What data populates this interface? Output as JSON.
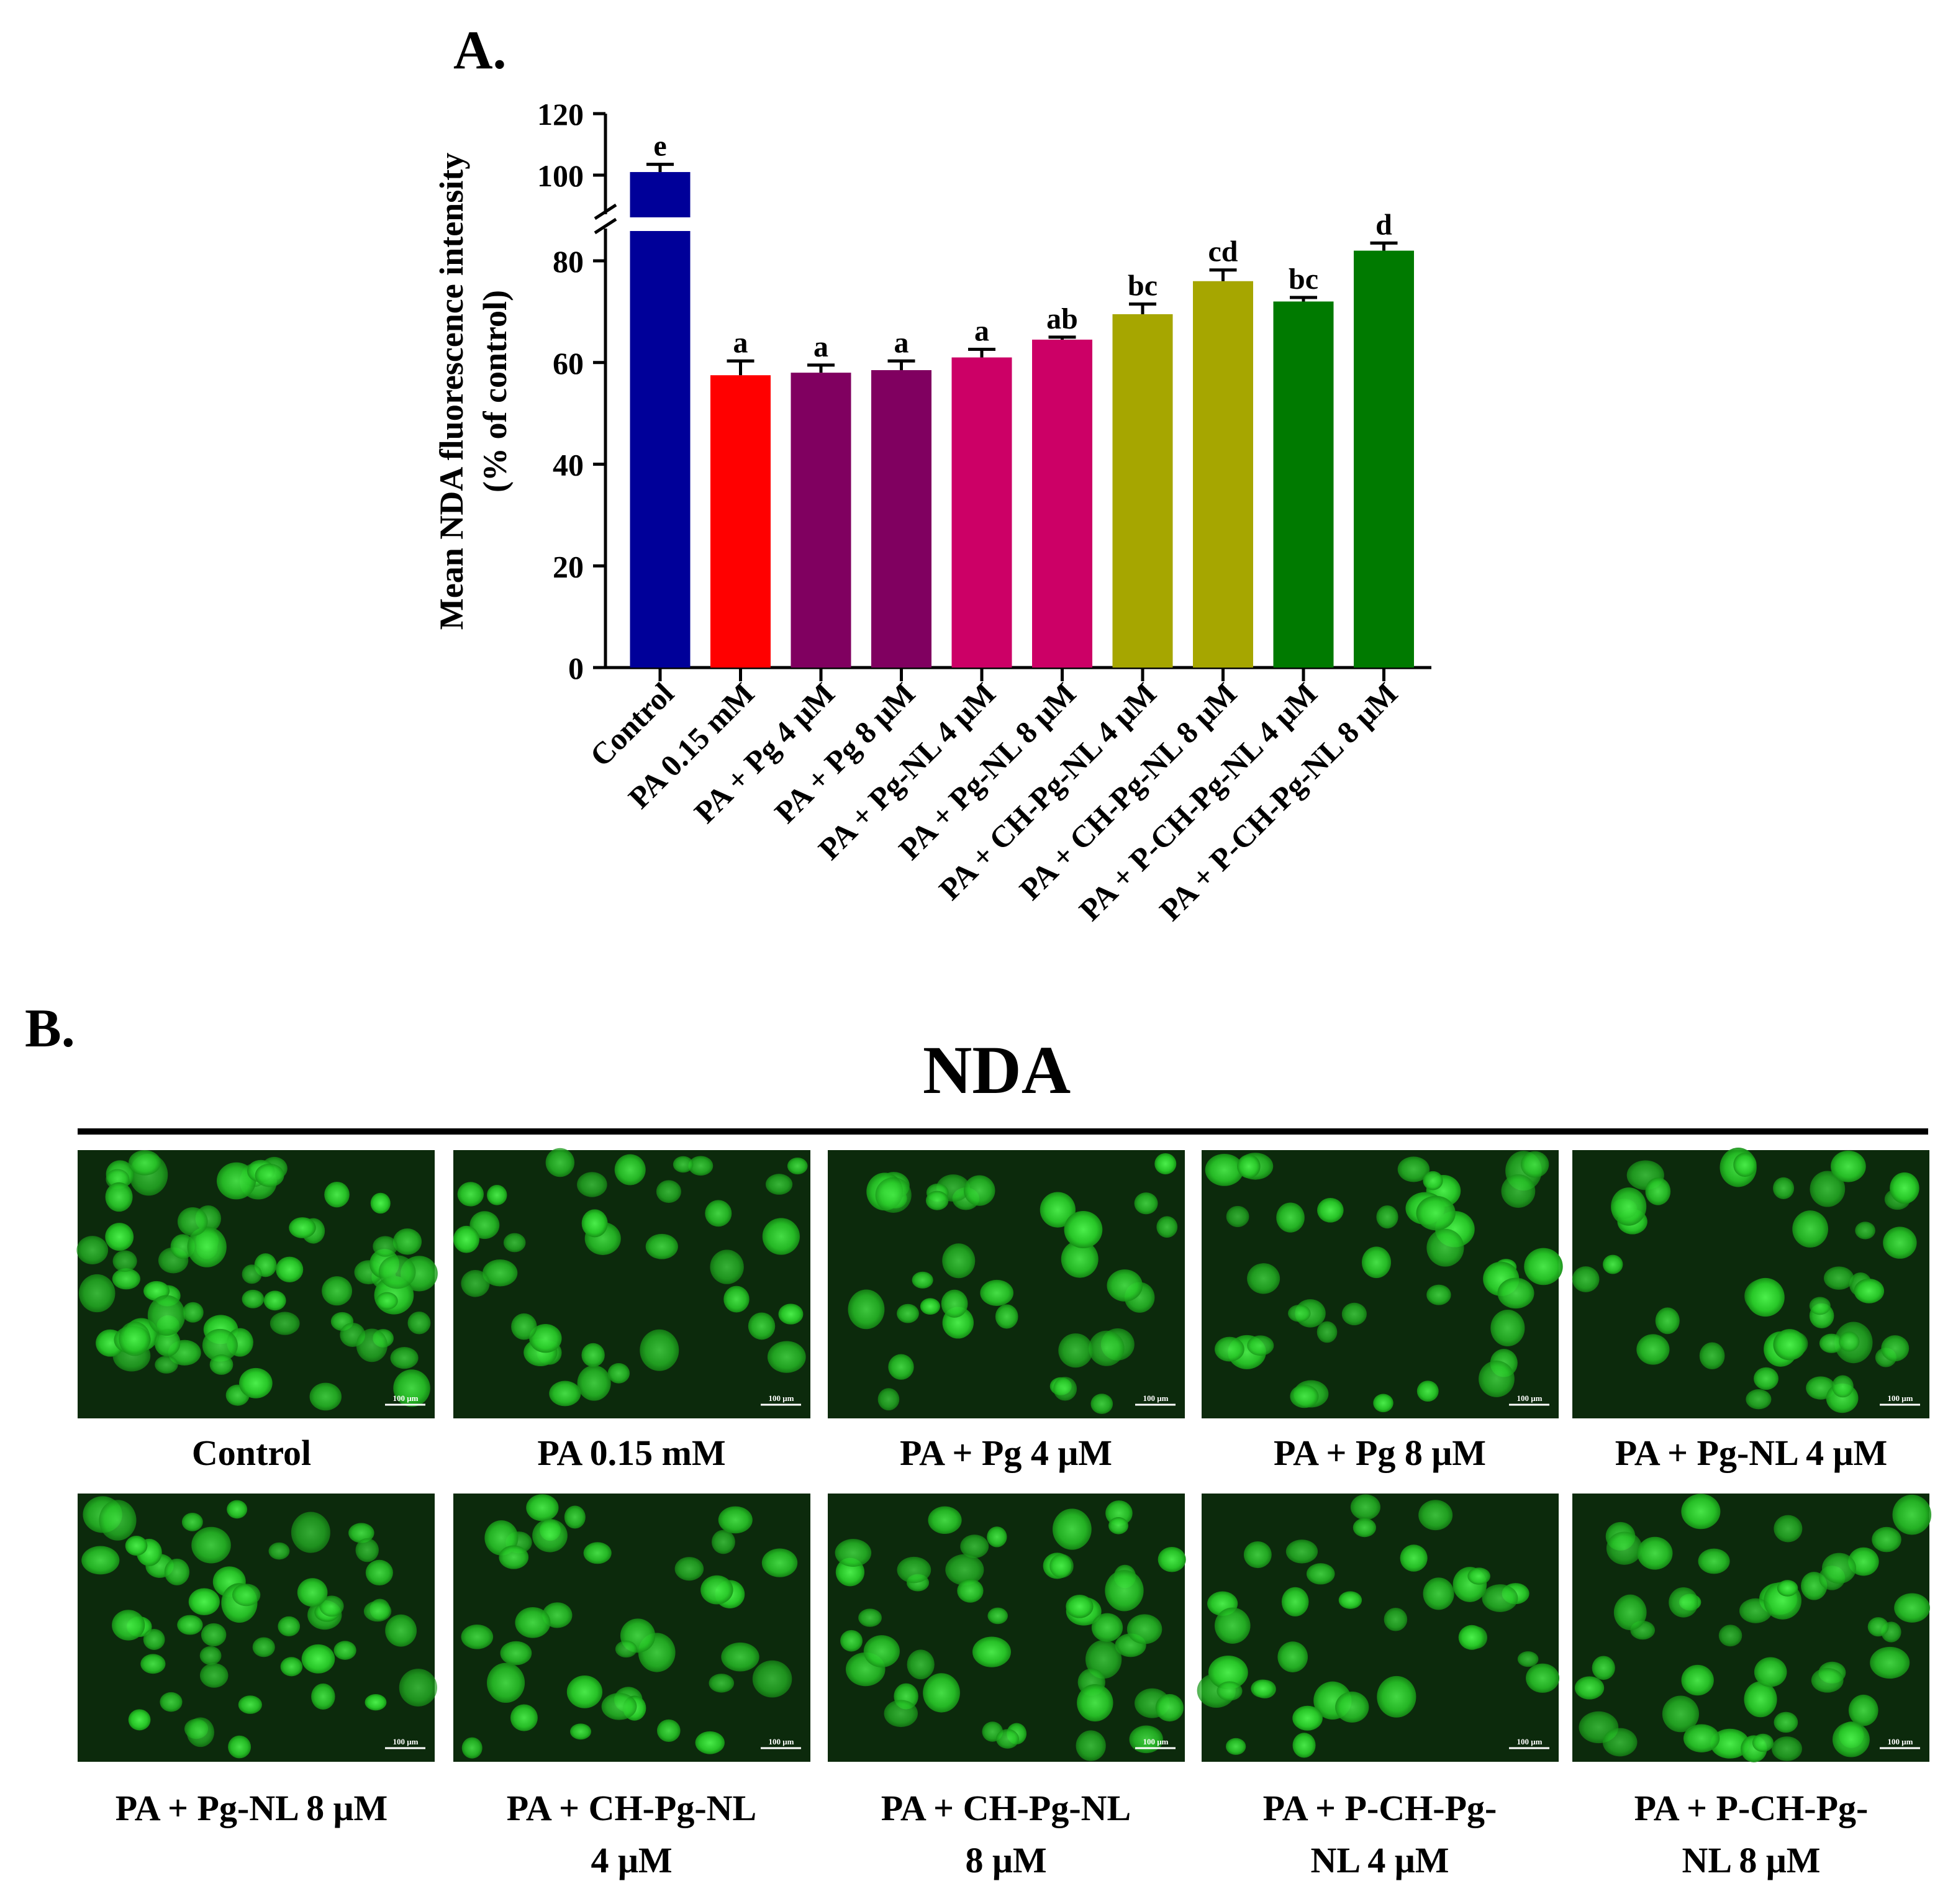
{
  "panels": {
    "a_label": "A.",
    "b_label": "B.",
    "b_title": "NDA"
  },
  "chart_data": {
    "type": "bar",
    "title": "",
    "ylabel_line1": "Mean NDA fluorescence intensity",
    "ylabel_line2": "(% of control)",
    "xlabel": "",
    "ylim": [
      0,
      120
    ],
    "yticks": [
      0,
      20,
      40,
      60,
      80,
      100,
      120
    ],
    "axis_break": true,
    "categories": [
      "Control",
      "PA 0.15 mM",
      "PA + Pg 4 μM",
      "PA + Pg 8 μM",
      "PA + Pg-NL 4 μM",
      "PA + Pg-NL 8 μM",
      "PA + CH-Pg-NL 4 μM",
      "PA + CH-Pg-NL 8 μM",
      "PA + P-CH-Pg-NL 4 μM",
      "PA + P-CH-Pg-NL 8 μM"
    ],
    "values": [
      101,
      57.5,
      58,
      58.5,
      61,
      64.5,
      69.5,
      76,
      72,
      82
    ],
    "errors": [
      2.5,
      2.8,
      1.5,
      1.8,
      1.6,
      0.5,
      2.0,
      2.2,
      0.8,
      1.5
    ],
    "significance": [
      "e",
      "a",
      "a",
      "a",
      "a",
      "ab",
      "bc",
      "cd",
      "bc",
      "d"
    ],
    "colors": [
      "#000099",
      "#ff0000",
      "#800060",
      "#800060",
      "#cc0066",
      "#cc0066",
      "#a6a600",
      "#a6a600",
      "#007a00",
      "#007a00"
    ]
  },
  "micrographs": {
    "scale_bar": "100 μm",
    "row1": [
      "Control",
      "PA 0.15 mM",
      "PA + Pg 4 μM",
      "PA + Pg 8 μM",
      "PA + Pg-NL 4 μM"
    ],
    "row2": [
      [
        "PA + Pg-NL 8 μM"
      ],
      [
        "PA + CH-Pg-NL",
        "4 μM"
      ],
      [
        "PA + CH-Pg-NL",
        "8 μM"
      ],
      [
        "PA + P-CH-Pg-",
        "NL 4 μM"
      ],
      [
        "PA + P-CH-Pg-",
        "NL 8 μM"
      ]
    ]
  }
}
